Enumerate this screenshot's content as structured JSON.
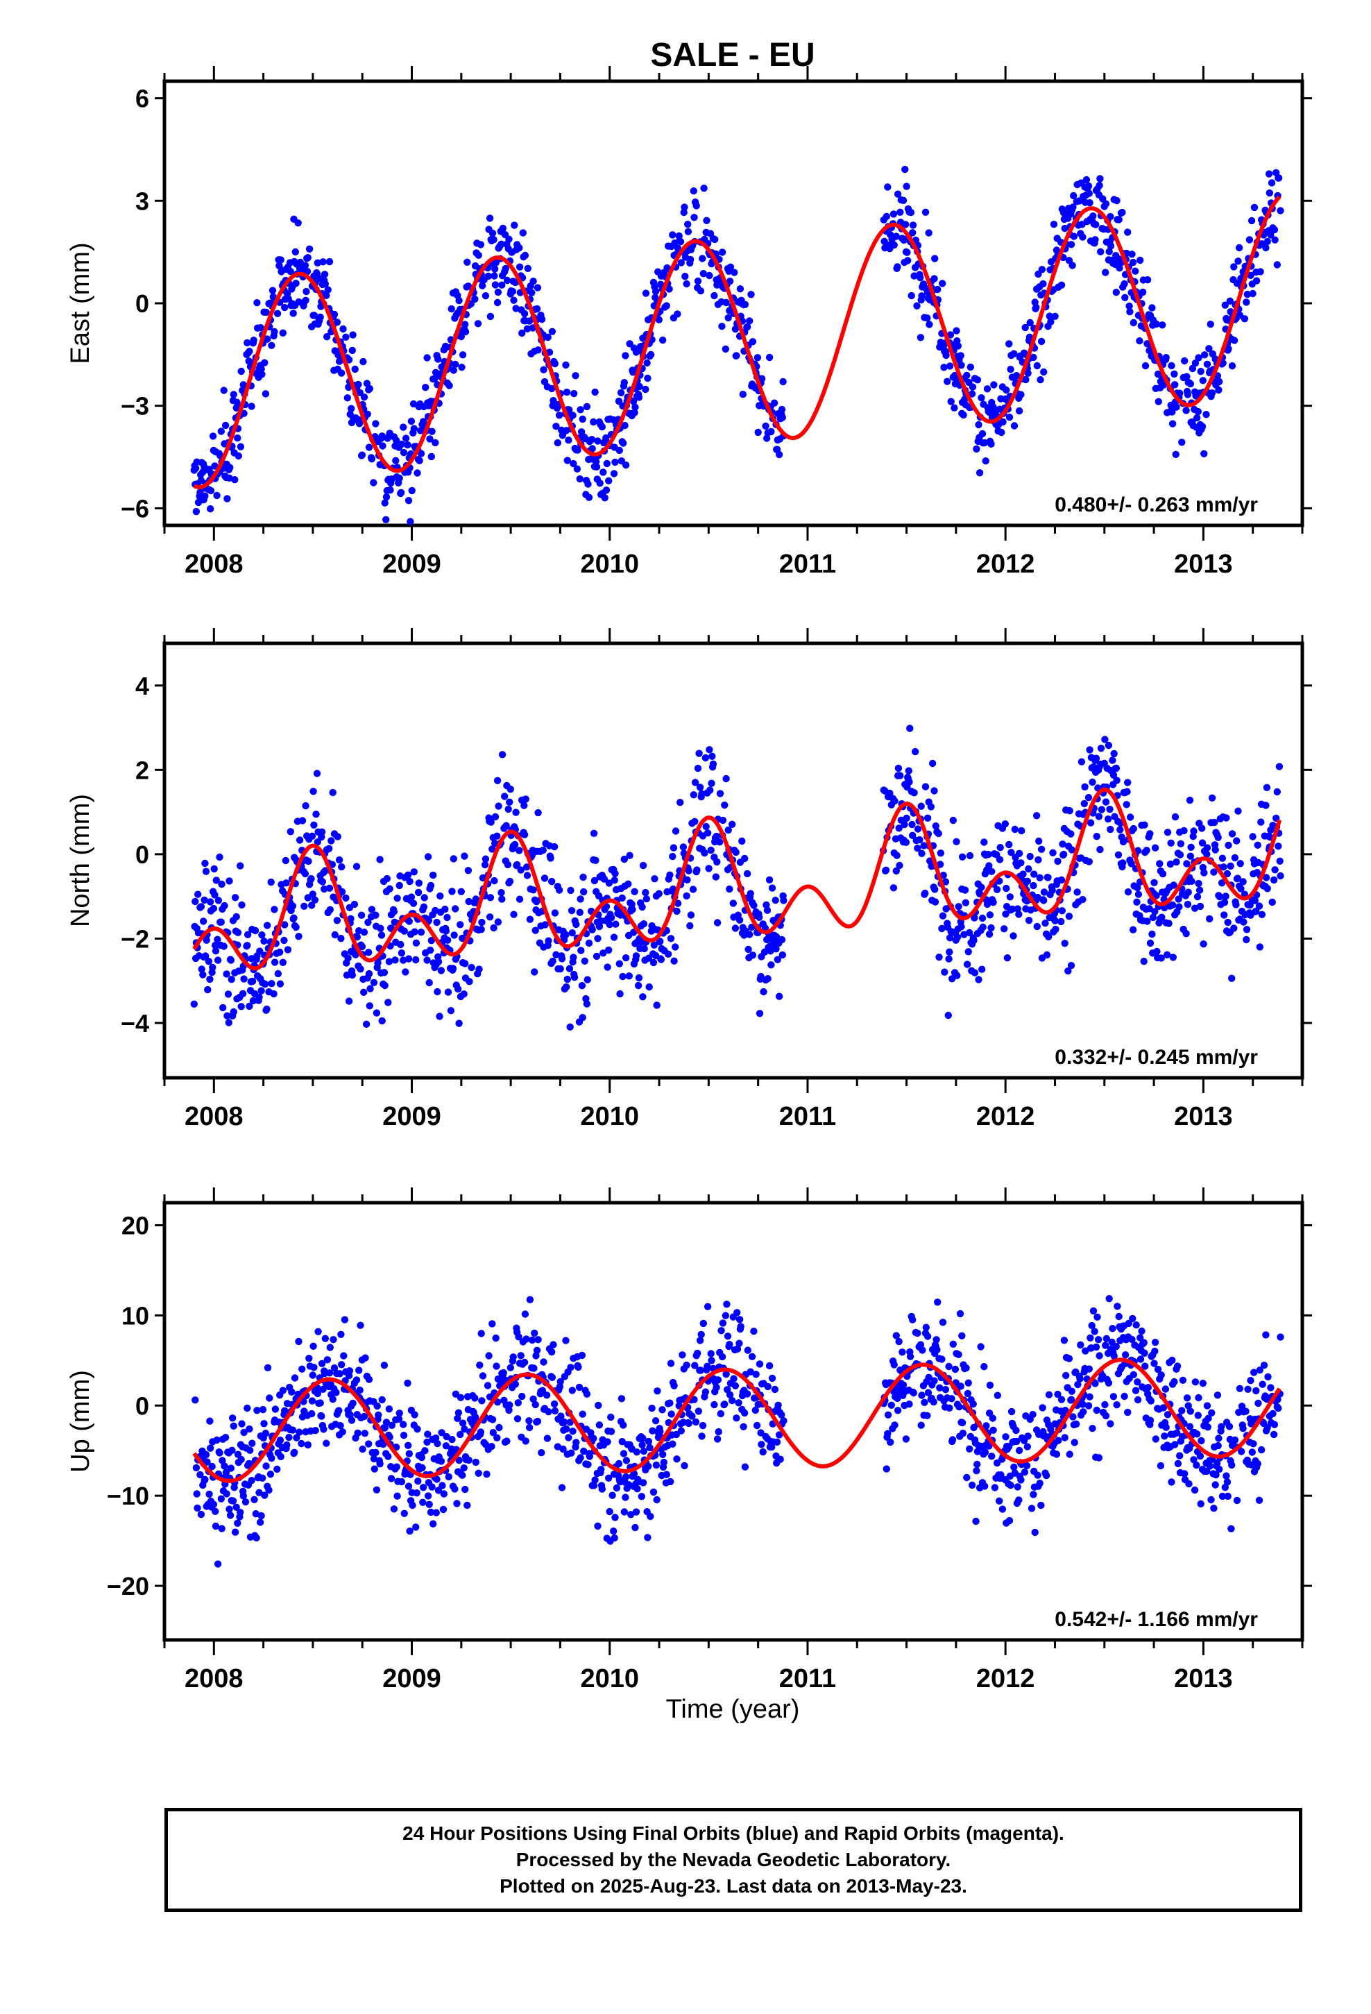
{
  "title": "SALE - EU",
  "colors": {
    "points": "#0000ff",
    "fit": "#ff0000",
    "frame": "#000000"
  },
  "xaxis": {
    "label": "Time (year)",
    "range": [
      2007.75,
      2013.5
    ],
    "ticks": [
      "2008",
      "2009",
      "2010",
      "2011",
      "2012",
      "2013"
    ]
  },
  "footer": {
    "line1": "24 Hour Positions Using Final Orbits (blue) and Rapid Orbits (magenta).",
    "line2": "Processed by the Nevada Geodetic Laboratory.",
    "line3": "Plotted on 2025-Aug-23. Last data on 2013-May-23."
  },
  "chart_data": [
    {
      "type": "scatter",
      "component": "east",
      "ylabel": "East (mm)",
      "ylim": [
        -6.5,
        6.5
      ],
      "yticks": [
        6,
        3,
        0,
        -3,
        -6
      ],
      "rate_label": "0.480+/- 0.263 mm/yr",
      "data_span": [
        2007.9,
        2013.39
      ],
      "gap": [
        2010.88,
        2011.38
      ],
      "series": [
        {
          "name": "24 Hour Positions (final orbits)",
          "style": "points",
          "noise": 1.0
        },
        {
          "name": "model fit",
          "style": "line",
          "rate": 0.48,
          "intercept": -1.1,
          "annual_amp": 3.0,
          "annual_peak": 0.43,
          "semiannual_amp": 0.0,
          "semiannual_peak": 0.0
        }
      ]
    },
    {
      "type": "scatter",
      "component": "north",
      "ylabel": "North (mm)",
      "ylim": [
        -5.3,
        5.0
      ],
      "yticks": [
        4,
        2,
        0,
        -2,
        -4
      ],
      "rate_label": "0.332+/- 0.245 mm/yr",
      "data_span": [
        2007.9,
        2013.39
      ],
      "gap": [
        2010.88,
        2011.38
      ],
      "series": [
        {
          "name": "24 Hour Positions (final orbits)",
          "style": "points",
          "noise": 1.2
        },
        {
          "name": "model fit",
          "style": "line",
          "rate": 0.332,
          "intercept": -0.9,
          "annual_amp": 0.9,
          "annual_peak": 0.5,
          "semiannual_amp": 0.9,
          "semiannual_peak": 0.0
        }
      ]
    },
    {
      "type": "scatter",
      "component": "up",
      "ylabel": "Up (mm)",
      "ylim": [
        -26.0,
        22.5
      ],
      "yticks": [
        20,
        10,
        0,
        -10,
        -20
      ],
      "rate_label": "0.542+/- 1.166 mm/yr",
      "data_span": [
        2007.9,
        2013.39
      ],
      "gap": [
        2010.88,
        2011.38
      ],
      "series": [
        {
          "name": "24 Hour Positions (final orbits)",
          "style": "points",
          "noise": 5.0
        },
        {
          "name": "model fit",
          "style": "line",
          "rate": 0.542,
          "intercept": -1.5,
          "annual_amp": 5.5,
          "annual_peak": 0.58,
          "semiannual_amp": 0.0,
          "semiannual_peak": 0.0
        }
      ]
    }
  ]
}
